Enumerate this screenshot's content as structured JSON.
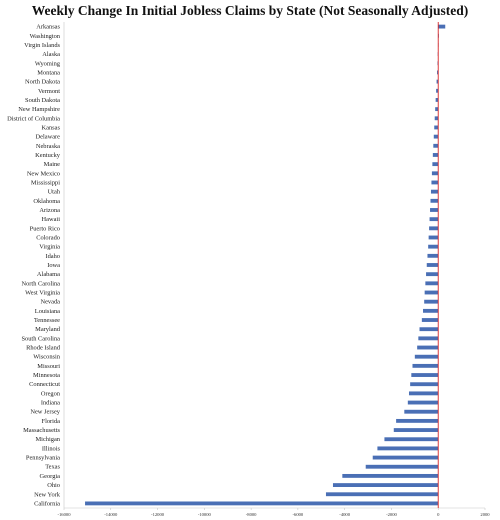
{
  "chart_data": {
    "type": "bar",
    "orientation": "horizontal",
    "title": "Weekly Change In Initial Jobless Claims by State (Not Seasonally Adjusted)",
    "xlabel": "",
    "ylabel": "",
    "xlim": [
      -16000,
      2000
    ],
    "xticks": [
      -16000,
      -14000,
      -12000,
      -10000,
      -8000,
      -6000,
      -4000,
      -2000,
      0,
      2000
    ],
    "grid": false,
    "legend": "none",
    "bar_color": "#4a6fb5",
    "zero_line_color": "#d62728",
    "categories": [
      "Arkansas",
      "Washington",
      "Virgin Islands",
      "Alaska",
      "Wyoming",
      "Montana",
      "North Dakota",
      "Vermont",
      "South Dakota",
      "New Hampshire",
      "District of Columbia",
      "Kansas",
      "Delaware",
      "Nebraska",
      "Kentucky",
      "Maine",
      "New Mexico",
      "Mississippi",
      "Utah",
      "Oklahoma",
      "Arizona",
      "Hawaii",
      "Puerto Rico",
      "Colorado",
      "Virginia",
      "Idaho",
      "Iowa",
      "Alabama",
      "North Carolina",
      "West Virginia",
      "Nevada",
      "Louisiana",
      "Tennessee",
      "Maryland",
      "South Carolina",
      "Rhode Island",
      "Wisconsin",
      "Missouri",
      "Minnesota",
      "Connecticut",
      "Oregon",
      "Indiana",
      "New Jersey",
      "Florida",
      "Massachusetts",
      "Michigan",
      "Illinois",
      "Pennsylvania",
      "Texas",
      "Georgia",
      "Ohio",
      "New York",
      "California"
    ],
    "values": [
      300,
      10,
      -10,
      -20,
      -30,
      -50,
      -70,
      -90,
      -110,
      -130,
      -150,
      -170,
      -190,
      -210,
      -230,
      -250,
      -270,
      -290,
      -310,
      -330,
      -350,
      -370,
      -390,
      -410,
      -430,
      -460,
      -490,
      -520,
      -550,
      -580,
      -600,
      -650,
      -700,
      -800,
      -850,
      -900,
      -1000,
      -1100,
      -1150,
      -1200,
      -1250,
      -1300,
      -1450,
      -1800,
      -1900,
      -2300,
      -2600,
      -2800,
      -3100,
      -4100,
      -4500,
      -4800,
      -15100
    ]
  }
}
